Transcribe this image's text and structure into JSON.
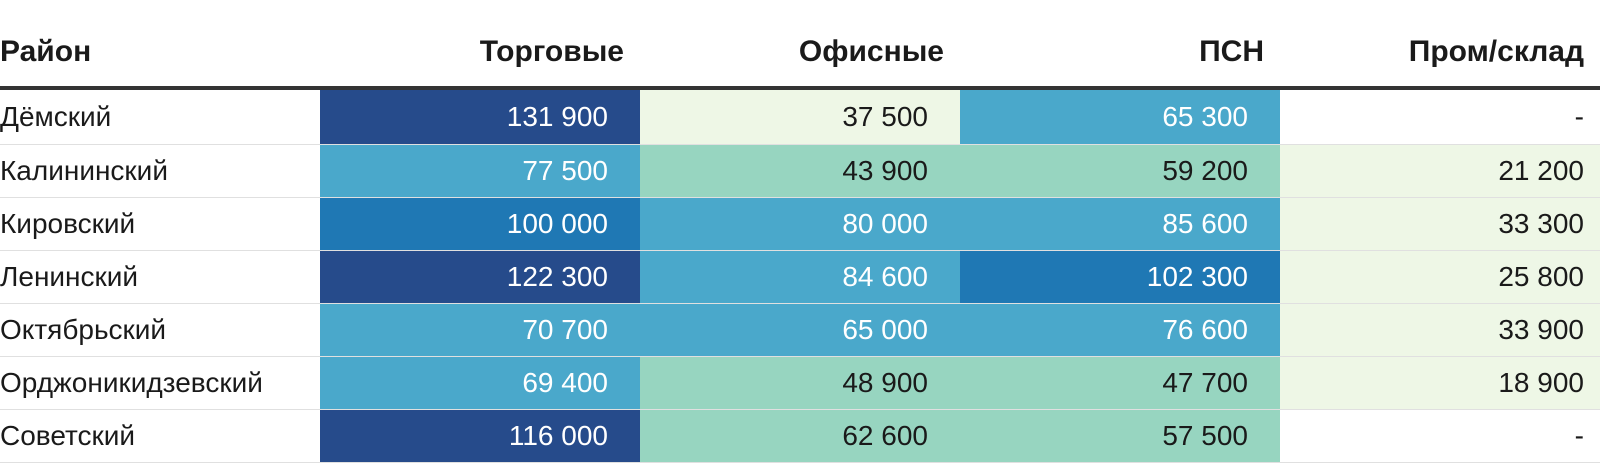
{
  "colors": {
    "very_high": "#264b8b",
    "high": "#1f78b4",
    "mid": "#4aa8cb",
    "low": "#97d5c0",
    "very_low": "#eef7e6",
    "none": "#ffffff"
  },
  "chart_data": {
    "type": "table",
    "columns": [
      "Район",
      "Торговые",
      "Офисные",
      "ПСН",
      "Пром/склад"
    ],
    "rows": [
      {
        "district": "Дёмский",
        "values": [
          "131 900",
          "37 500",
          "65 300",
          "-"
        ],
        "levels": [
          "very_high",
          "very_low",
          "mid",
          "none"
        ]
      },
      {
        "district": "Калининский",
        "values": [
          "77 500",
          "43 900",
          "59 200",
          "21 200"
        ],
        "levels": [
          "mid",
          "low",
          "low",
          "very_low"
        ]
      },
      {
        "district": "Кировский",
        "values": [
          "100 000",
          "80 000",
          "85 600",
          "33 300"
        ],
        "levels": [
          "high",
          "mid",
          "mid",
          "very_low"
        ]
      },
      {
        "district": "Ленинский",
        "values": [
          "122 300",
          "84 600",
          "102 300",
          "25 800"
        ],
        "levels": [
          "very_high",
          "mid",
          "high",
          "very_low"
        ]
      },
      {
        "district": "Октябрьский",
        "values": [
          "70 700",
          "65 000",
          "76 600",
          "33 900"
        ],
        "levels": [
          "mid",
          "mid",
          "mid",
          "very_low"
        ]
      },
      {
        "district": "Орджоникидзевский",
        "values": [
          "69 400",
          "48 900",
          "47 700",
          "18 900"
        ],
        "levels": [
          "mid",
          "low",
          "low",
          "very_low"
        ]
      },
      {
        "district": "Советский",
        "values": [
          "116 000",
          "62 600",
          "57 500",
          "-"
        ],
        "levels": [
          "very_high",
          "low",
          "low",
          "none"
        ]
      }
    ]
  }
}
